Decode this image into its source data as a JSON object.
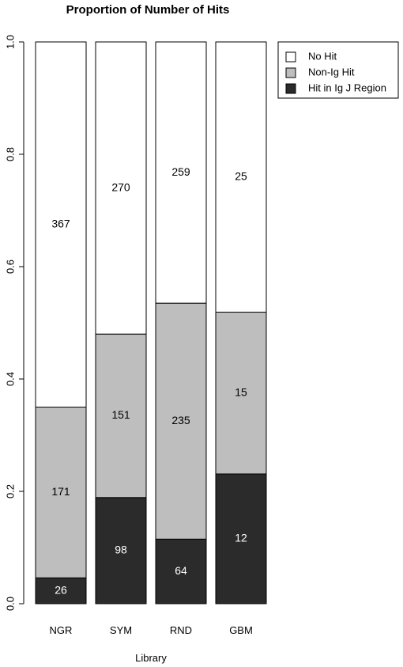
{
  "chart_data": {
    "type": "bar",
    "stacked": true,
    "title": "Proportion of Number of Hits",
    "xlabel": "Library",
    "ylabel": "",
    "ylim": [
      0,
      1
    ],
    "y_ticks": [
      "0.0",
      "0.2",
      "0.4",
      "0.6",
      "0.8",
      "1.0"
    ],
    "categories": [
      "NGR",
      "SYM",
      "RND",
      "GBM"
    ],
    "series": [
      {
        "name": "Hit in Ig J Region",
        "color": "#2b2b2b",
        "label_color": "#ffffff",
        "counts": [
          26,
          98,
          64,
          12
        ],
        "proportions": [
          0.046,
          0.189,
          0.115,
          0.231
        ]
      },
      {
        "name": "Non-Ig Hit",
        "color": "#bebebe",
        "label_color": "#000000",
        "counts": [
          171,
          151,
          235,
          15
        ],
        "proportions": [
          0.304,
          0.291,
          0.42,
          0.288
        ]
      },
      {
        "name": "No Hit",
        "color": "#ffffff",
        "label_color": "#000000",
        "counts": [
          367,
          270,
          259,
          25
        ],
        "proportions": [
          0.65,
          0.52,
          0.465,
          0.481
        ]
      }
    ],
    "legend": {
      "position": "top-right",
      "entries": [
        "No Hit",
        "Non-Ig Hit",
        "Hit in Ig J Region"
      ]
    },
    "grid": false
  }
}
